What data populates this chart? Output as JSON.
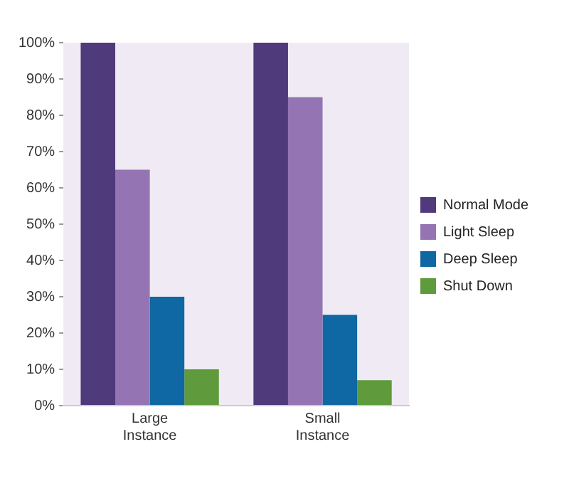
{
  "chart_data": {
    "type": "bar",
    "categories": [
      "Large Instance",
      "Small Instance"
    ],
    "series": [
      {
        "name": "Normal Mode",
        "color": "#4f3a7c",
        "values": [
          100,
          100
        ]
      },
      {
        "name": "Light Sleep",
        "color": "#9474b3",
        "values": [
          65,
          85
        ]
      },
      {
        "name": "Deep Sleep",
        "color": "#0f67a3",
        "values": [
          30,
          25
        ]
      },
      {
        "name": "Shut Down",
        "color": "#5f9a3c",
        "values": [
          10,
          7
        ]
      }
    ],
    "ylim": [
      0,
      100
    ],
    "yticks": [
      {
        "value": 0,
        "label": "0%"
      },
      {
        "value": 10,
        "label": "10%"
      },
      {
        "value": 20,
        "label": "20%"
      },
      {
        "value": 30,
        "label": "30%"
      },
      {
        "value": 40,
        "label": "40%"
      },
      {
        "value": 50,
        "label": "50%"
      },
      {
        "value": 60,
        "label": "60%"
      },
      {
        "value": 70,
        "label": "70%"
      },
      {
        "value": 80,
        "label": "80%"
      },
      {
        "value": 90,
        "label": "90%"
      },
      {
        "value": 100,
        "label": "100%"
      }
    ],
    "grid": false,
    "legend": "right"
  }
}
